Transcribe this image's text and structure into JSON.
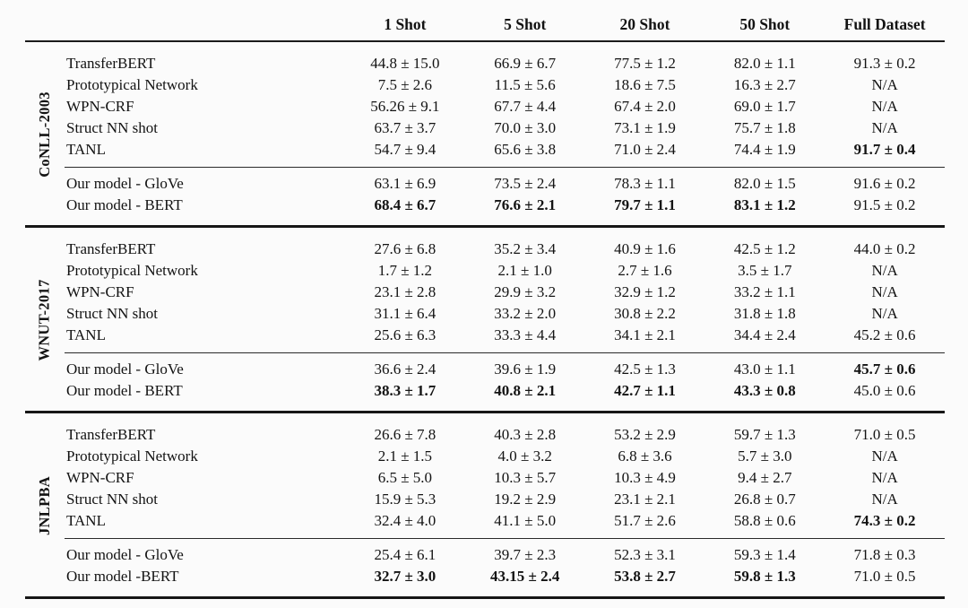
{
  "page": {
    "background_color": "#fbfbfb",
    "text_color": "#131313",
    "rule_color": "#1b1b1b"
  },
  "table": {
    "headers": [
      "1 Shot",
      "5 Shot",
      "20 Shot",
      "50 Shot",
      "Full Dataset"
    ],
    "groups": [
      {
        "label": "CoNLL-2003",
        "rows": [
          {
            "method": "TransferBERT",
            "values": [
              "44.8 ± 15.0",
              "66.9 ± 6.7",
              "77.5 ± 1.2",
              "82.0 ± 1.1",
              "91.3 ± 0.2"
            ]
          },
          {
            "method": "Prototypical Network",
            "values": [
              "7.5 ± 2.6",
              "11.5 ± 5.6",
              "18.6 ± 7.5",
              "16.3 ± 2.7",
              "N/A"
            ]
          },
          {
            "method": "WPN-CRF",
            "values": [
              "56.26 ± 9.1",
              "67.7 ± 4.4",
              "67.4 ± 2.0",
              "69.0 ± 1.7",
              "N/A"
            ]
          },
          {
            "method": "Struct NN shot",
            "values": [
              "63.7 ± 3.7",
              "70.0 ± 3.0",
              "73.1 ± 1.9",
              "75.7 ± 1.8",
              "N/A"
            ]
          },
          {
            "method": "TANL",
            "values": [
              "54.7 ± 9.4",
              "65.6 ± 3.8",
              "71.0 ± 2.4",
              "74.4 ± 1.9",
              "91.7 ± 0.4"
            ]
          },
          {
            "method": "Our model - GloVe",
            "values": [
              "63.1 ± 6.9",
              "73.5 ± 2.4",
              "78.3 ± 1.1",
              "82.0 ± 1.5",
              "91.6 ± 0.2"
            ]
          },
          {
            "method": "Our model - BERT",
            "values": [
              "68.4 ± 6.7",
              "76.6 ± 2.1",
              "79.7 ± 1.1",
              "83.1 ± 1.2",
              "91.5 ± 0.2"
            ]
          }
        ]
      },
      {
        "label": "WNUT-2017",
        "rows": [
          {
            "method": "TransferBERT",
            "values": [
              "27.6 ± 6.8",
              "35.2 ± 3.4",
              "40.9 ± 1.6",
              "42.5 ± 1.2",
              "44.0 ± 0.2"
            ]
          },
          {
            "method": "Prototypical Network",
            "values": [
              "1.7 ± 1.2",
              "2.1 ± 1.0",
              "2.7 ± 1.6",
              "3.5 ± 1.7",
              "N/A"
            ]
          },
          {
            "method": "WPN-CRF",
            "values": [
              "23.1 ± 2.8",
              "29.9 ± 3.2",
              "32.9 ± 1.2",
              "33.2 ± 1.1",
              "N/A"
            ]
          },
          {
            "method": "Struct NN shot",
            "values": [
              "31.1 ± 6.4",
              "33.2 ± 2.0",
              "30.8 ± 2.2",
              "31.8 ± 1.8",
              "N/A"
            ]
          },
          {
            "method": "TANL",
            "values": [
              "25.6 ± 6.3",
              "33.3 ± 4.4",
              "34.1 ± 2.1",
              "34.4 ± 2.4",
              "45.2 ± 0.6"
            ]
          },
          {
            "method": "Our model - GloVe",
            "values": [
              "36.6 ± 2.4",
              "39.6 ± 1.9",
              "42.5 ± 1.3",
              "43.0 ± 1.1",
              "45.7 ± 0.6"
            ]
          },
          {
            "method": "Our model - BERT",
            "values": [
              "38.3 ± 1.7",
              "40.8 ± 2.1",
              "42.7 ± 1.1",
              "43.3 ± 0.8",
              "45.0 ± 0.6"
            ]
          }
        ]
      },
      {
        "label": "JNLPBA",
        "rows": [
          {
            "method": "TransferBERT",
            "values": [
              "26.6 ± 7.8",
              "40.3 ± 2.8",
              "53.2 ± 2.9",
              "59.7 ± 1.3",
              "71.0 ± 0.5"
            ]
          },
          {
            "method": "Prototypical Network",
            "values": [
              "2.1 ± 1.5",
              "4.0 ± 3.2",
              "6.8 ± 3.6",
              "5.7 ± 3.0",
              "N/A"
            ]
          },
          {
            "method": "WPN-CRF",
            "values": [
              "6.5 ± 5.0",
              "10.3 ± 5.7",
              "10.3 ± 4.9",
              "9.4 ± 2.7",
              "N/A"
            ]
          },
          {
            "method": "Struct NN shot",
            "values": [
              "15.9 ± 5.3",
              "19.2 ± 2.9",
              "23.1 ± 2.1",
              "26.8 ± 0.7",
              "N/A"
            ]
          },
          {
            "method": "TANL",
            "values": [
              "32.4 ± 4.0",
              "41.1 ± 5.0",
              "51.7 ± 2.6",
              "58.8 ± 0.6",
              "74.3 ± 0.2"
            ]
          },
          {
            "method": "Our model - GloVe",
            "values": [
              "25.4 ± 6.1",
              "39.7 ± 2.3",
              "52.3 ± 3.1",
              "59.3 ± 1.4",
              "71.8 ± 0.3"
            ]
          },
          {
            "method": "Our model -BERT",
            "values": [
              "32.7 ± 3.0",
              "43.15 ± 2.4",
              "53.8 ± 2.7",
              "59.8 ± 1.3",
              "71.0 ± 0.5"
            ]
          }
        ]
      }
    ]
  }
}
